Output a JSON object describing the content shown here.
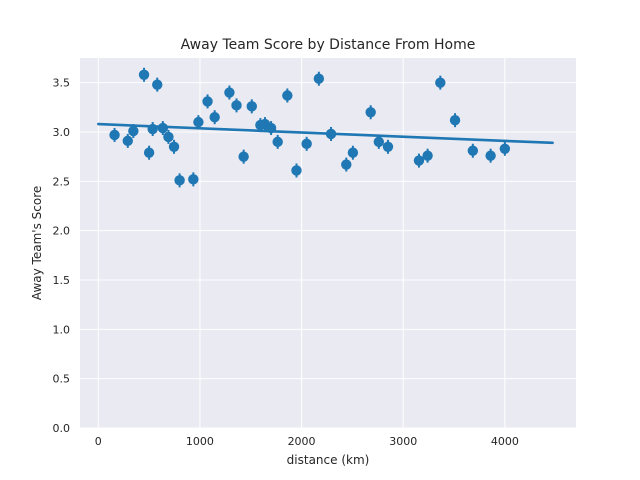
{
  "chart_data": {
    "type": "scatter",
    "title": "Away Team Score by Distance From Home",
    "xlabel": "distance (km)",
    "ylabel": "Away Team's Score",
    "xlim": [
      -180,
      4700
    ],
    "ylim": [
      0,
      3.75
    ],
    "x_ticks": [
      0,
      1000,
      2000,
      3000,
      4000
    ],
    "y_ticks": [
      0.0,
      0.5,
      1.0,
      1.5,
      2.0,
      2.5,
      3.0,
      3.5
    ],
    "x_tick_labels": [
      "0",
      "1000",
      "2000",
      "3000",
      "4000"
    ],
    "y_tick_labels": [
      "0.0",
      "0.5",
      "1.0",
      "1.5",
      "2.0",
      "2.5",
      "3.0",
      "3.5"
    ],
    "grid": true,
    "point_color": "#1f77b4",
    "background_color": "#eaeaf2",
    "points": [
      {
        "x": 160,
        "y": 2.97
      },
      {
        "x": 290,
        "y": 2.91
      },
      {
        "x": 345,
        "y": 3.01
      },
      {
        "x": 450,
        "y": 3.58
      },
      {
        "x": 500,
        "y": 2.79
      },
      {
        "x": 535,
        "y": 3.03
      },
      {
        "x": 580,
        "y": 3.48
      },
      {
        "x": 635,
        "y": 3.04
      },
      {
        "x": 690,
        "y": 2.95
      },
      {
        "x": 745,
        "y": 2.85
      },
      {
        "x": 800,
        "y": 2.51
      },
      {
        "x": 935,
        "y": 2.52
      },
      {
        "x": 985,
        "y": 3.1
      },
      {
        "x": 1075,
        "y": 3.31
      },
      {
        "x": 1145,
        "y": 3.15
      },
      {
        "x": 1290,
        "y": 3.4
      },
      {
        "x": 1360,
        "y": 3.27
      },
      {
        "x": 1430,
        "y": 2.75
      },
      {
        "x": 1510,
        "y": 3.26
      },
      {
        "x": 1595,
        "y": 3.07
      },
      {
        "x": 1640,
        "y": 3.08
      },
      {
        "x": 1700,
        "y": 3.04
      },
      {
        "x": 1765,
        "y": 2.9
      },
      {
        "x": 1860,
        "y": 3.37
      },
      {
        "x": 1950,
        "y": 2.61
      },
      {
        "x": 2050,
        "y": 2.88
      },
      {
        "x": 2170,
        "y": 3.54
      },
      {
        "x": 2290,
        "y": 2.98
      },
      {
        "x": 2440,
        "y": 2.67
      },
      {
        "x": 2505,
        "y": 2.79
      },
      {
        "x": 2680,
        "y": 3.2
      },
      {
        "x": 2760,
        "y": 2.9
      },
      {
        "x": 2850,
        "y": 2.85
      },
      {
        "x": 3155,
        "y": 2.71
      },
      {
        "x": 3240,
        "y": 2.76
      },
      {
        "x": 3365,
        "y": 3.5
      },
      {
        "x": 3510,
        "y": 3.12
      },
      {
        "x": 3685,
        "y": 2.81
      },
      {
        "x": 3860,
        "y": 2.76
      },
      {
        "x": 4000,
        "y": 2.83
      }
    ],
    "regression": {
      "x": [
        0,
        4470
      ],
      "y": [
        3.08,
        2.89
      ]
    }
  }
}
